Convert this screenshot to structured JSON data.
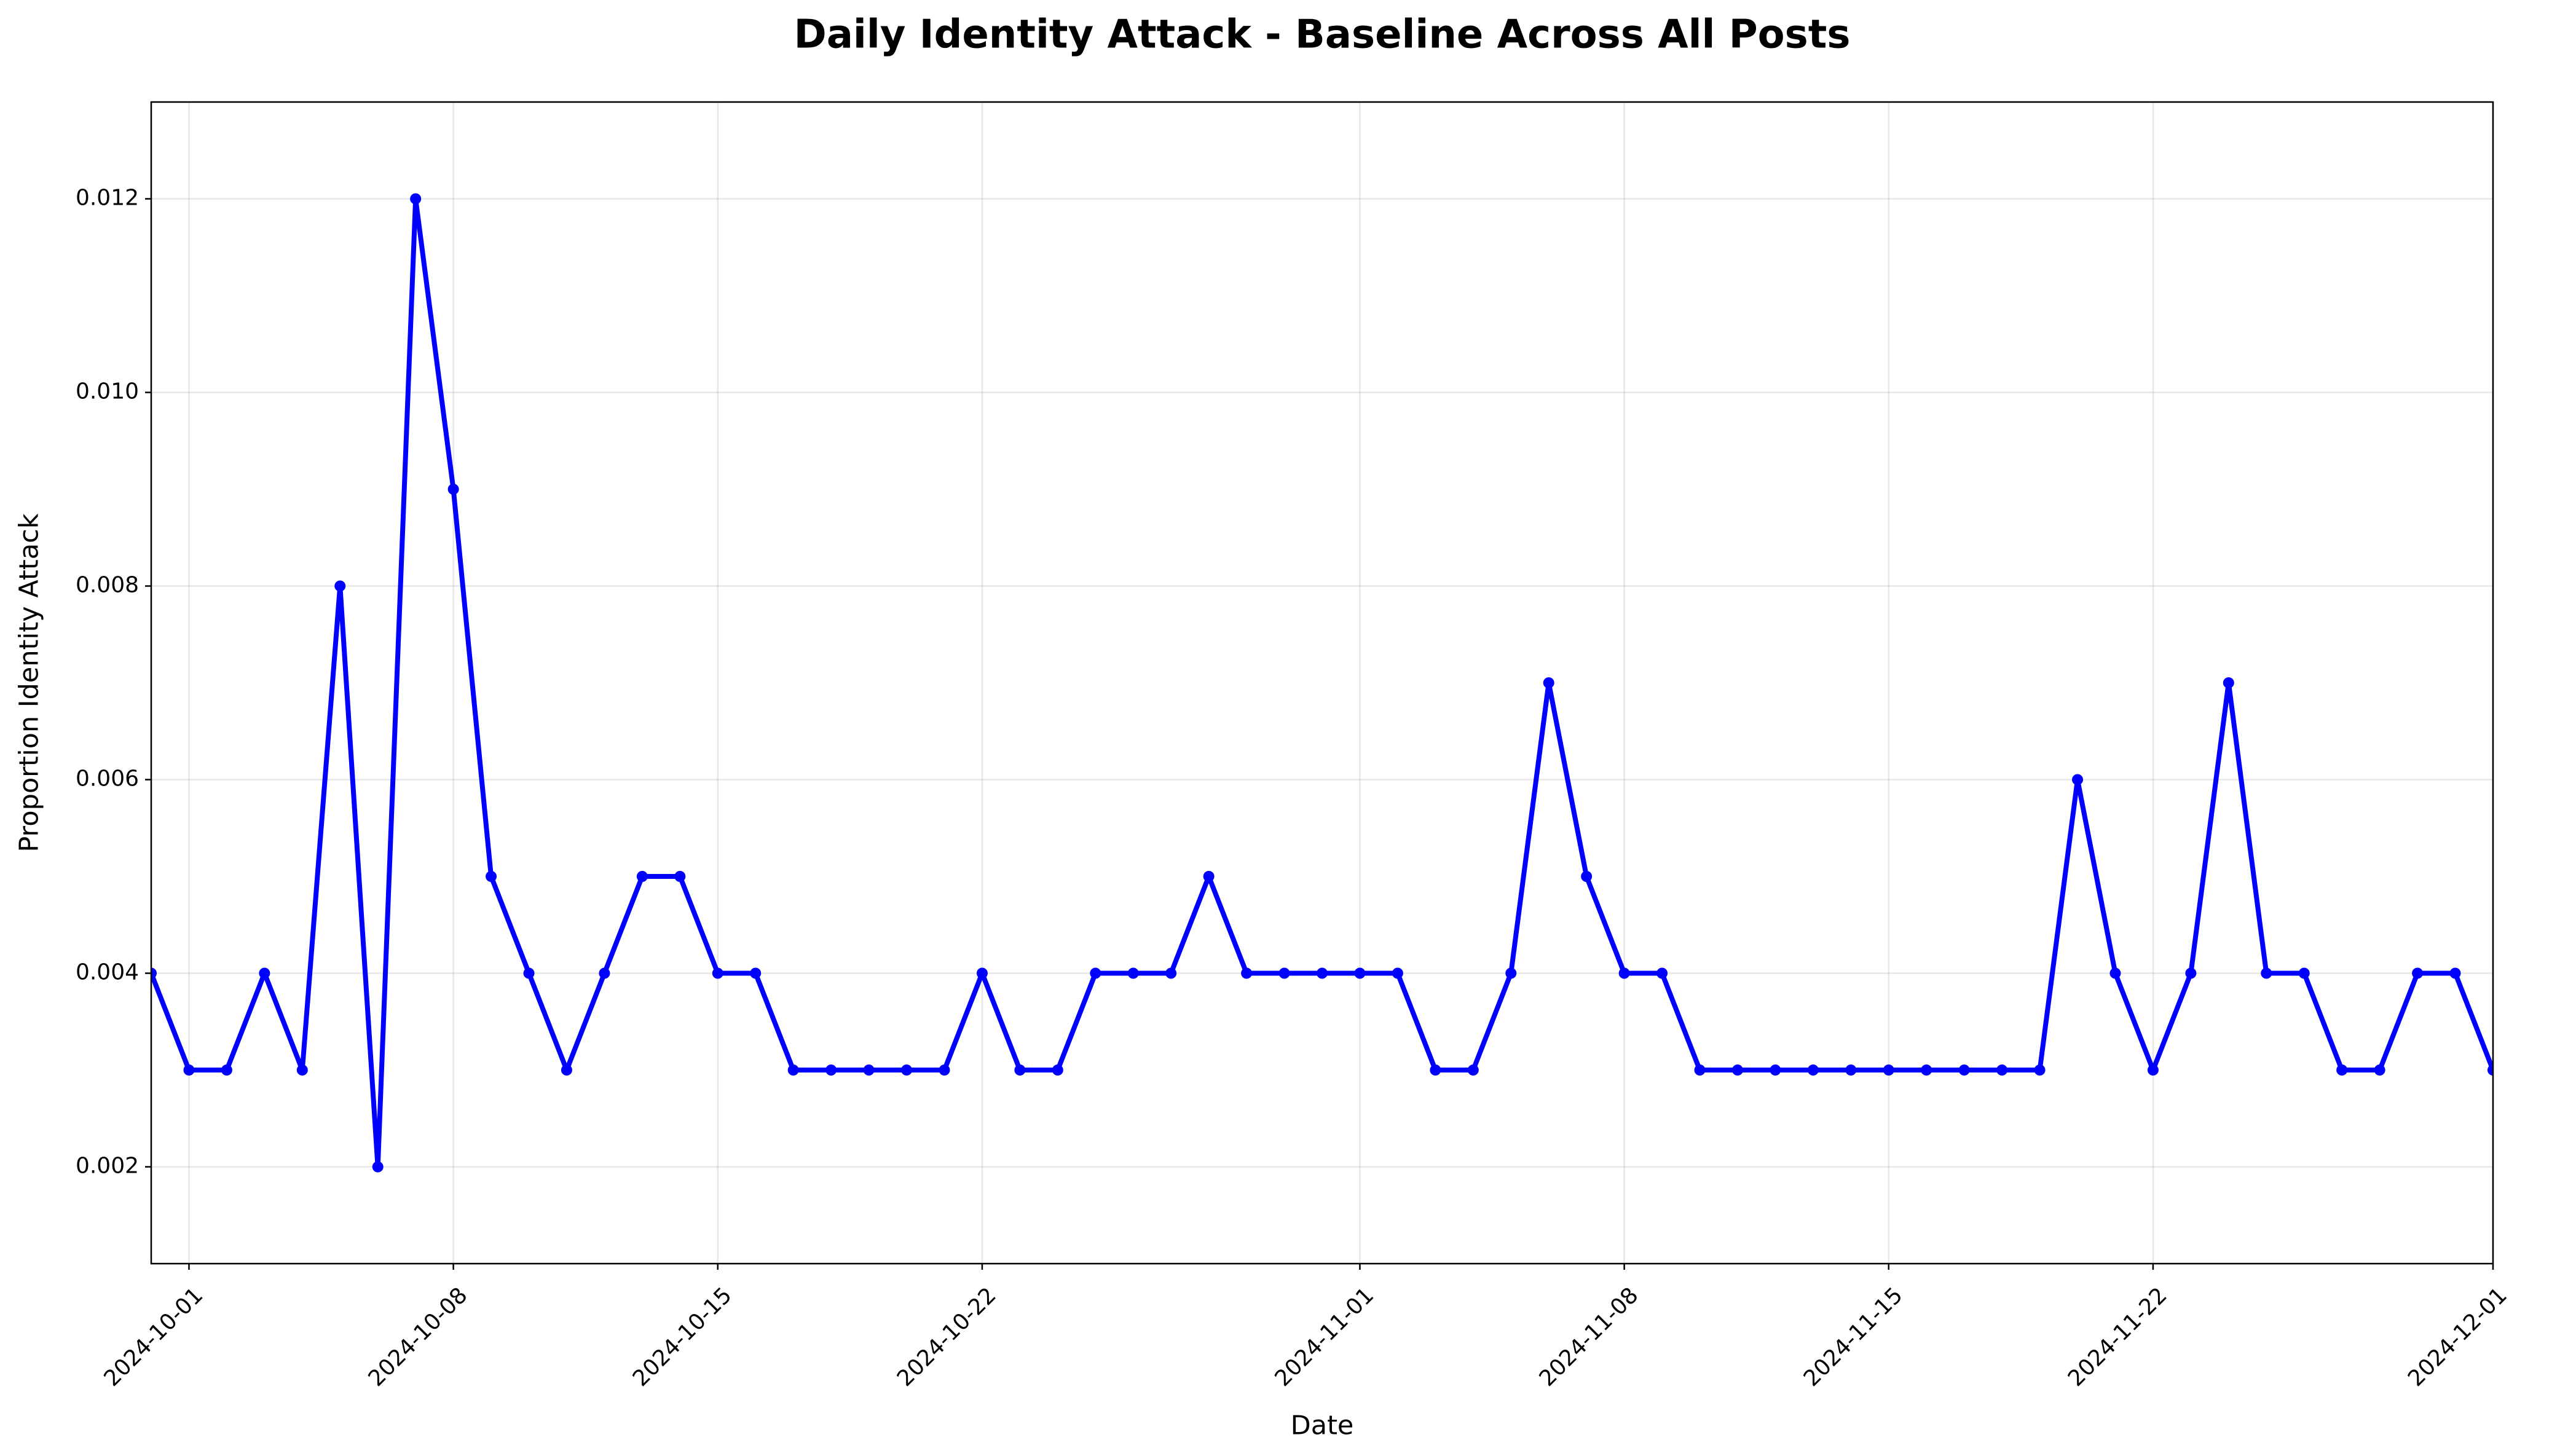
{
  "chart_data": {
    "type": "line",
    "title": "Daily Identity Attack - Baseline Across All Posts",
    "xlabel": "Date",
    "ylabel": "Proportion Identity Attack",
    "x": [
      "2024-09-30",
      "2024-10-01",
      "2024-10-02",
      "2024-10-03",
      "2024-10-04",
      "2024-10-05",
      "2024-10-06",
      "2024-10-07",
      "2024-10-08",
      "2024-10-09",
      "2024-10-10",
      "2024-10-11",
      "2024-10-12",
      "2024-10-13",
      "2024-10-14",
      "2024-10-15",
      "2024-10-16",
      "2024-10-17",
      "2024-10-18",
      "2024-10-19",
      "2024-10-20",
      "2024-10-21",
      "2024-10-22",
      "2024-10-23",
      "2024-10-24",
      "2024-10-25",
      "2024-10-26",
      "2024-10-27",
      "2024-10-28",
      "2024-10-29",
      "2024-10-30",
      "2024-10-31",
      "2024-11-01",
      "2024-11-02",
      "2024-11-03",
      "2024-11-04",
      "2024-11-05",
      "2024-11-06",
      "2024-11-07",
      "2024-11-08",
      "2024-11-09",
      "2024-11-10",
      "2024-11-11",
      "2024-11-12",
      "2024-11-13",
      "2024-11-14",
      "2024-11-15",
      "2024-11-16",
      "2024-11-17",
      "2024-11-18",
      "2024-11-19",
      "2024-11-20",
      "2024-11-21",
      "2024-11-22",
      "2024-11-23",
      "2024-11-24",
      "2024-11-25",
      "2024-11-26",
      "2024-11-27",
      "2024-11-28",
      "2024-11-29",
      "2024-11-30",
      "2024-12-01"
    ],
    "values": [
      0.004,
      0.003,
      0.003,
      0.004,
      0.003,
      0.008,
      0.002,
      0.012,
      0.009,
      0.005,
      0.004,
      0.003,
      0.004,
      0.005,
      0.005,
      0.004,
      0.004,
      0.003,
      0.003,
      0.003,
      0.003,
      0.003,
      0.004,
      0.003,
      0.003,
      0.004,
      0.004,
      0.004,
      0.005,
      0.004,
      0.004,
      0.004,
      0.004,
      0.004,
      0.003,
      0.003,
      0.004,
      0.007,
      0.005,
      0.004,
      0.004,
      0.003,
      0.003,
      0.003,
      0.003,
      0.003,
      0.003,
      0.003,
      0.003,
      0.003,
      0.003,
      0.006,
      0.004,
      0.003,
      0.004,
      0.007,
      0.004,
      0.004,
      0.003,
      0.003,
      0.004,
      0.004,
      0.003
    ],
    "color": "#0000ff",
    "xlim": [
      "2024-09-30",
      "2024-12-01"
    ],
    "xticks": [
      "2024-10-01",
      "2024-10-08",
      "2024-10-15",
      "2024-10-22",
      "2024-11-01",
      "2024-11-08",
      "2024-11-15",
      "2024-11-22",
      "2024-12-01"
    ],
    "ylim": [
      0.001,
      0.013
    ],
    "yticks": [
      0.002,
      0.004,
      0.006,
      0.008,
      {
        "value": 0.01,
        "label": "0.010"
      },
      0.012
    ],
    "grid": true
  }
}
